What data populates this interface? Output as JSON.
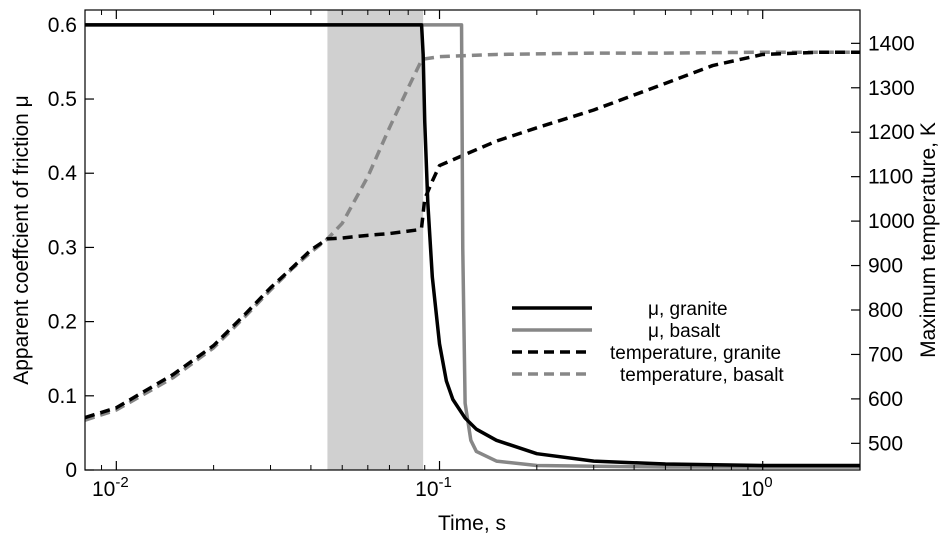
{
  "chart_data": {
    "type": "line",
    "xlabel": "Time, s",
    "ylabel_left": "Apparent coeffcient of friction μ",
    "ylabel_right": "Maximum temperature, K",
    "x_scale": "log",
    "xlim": [
      0.008,
      2.0
    ],
    "ylim_left": [
      0,
      0.62
    ],
    "ylim_right": [
      440,
      1475
    ],
    "x_ticks": [
      {
        "value": 0.01,
        "base": "10",
        "exp": "-2"
      },
      {
        "value": 0.1,
        "base": "10",
        "exp": "-1"
      },
      {
        "value": 1,
        "base": "10",
        "exp": "0"
      }
    ],
    "y_left_ticks": [
      "0",
      "0.1",
      "0.2",
      "0.3",
      "0.4",
      "0.5",
      "0.6"
    ],
    "y_right_ticks": [
      "500",
      "600",
      "700",
      "800",
      "900",
      "1000",
      "1100",
      "1200",
      "1300",
      "1400"
    ],
    "shaded_region": {
      "x_start": 0.045,
      "x_end": 0.089,
      "color": "#d0d0d0"
    },
    "grid": false,
    "legend_position": "center-right",
    "series": [
      {
        "name": "μ, granite",
        "axis": "left",
        "color": "#000000",
        "style": "solid",
        "points": [
          [
            0.008,
            0.6
          ],
          [
            0.088,
            0.6
          ],
          [
            0.089,
            0.56
          ],
          [
            0.09,
            0.47
          ],
          [
            0.092,
            0.36
          ],
          [
            0.095,
            0.26
          ],
          [
            0.1,
            0.17
          ],
          [
            0.105,
            0.12
          ],
          [
            0.11,
            0.095
          ],
          [
            0.12,
            0.07
          ],
          [
            0.13,
            0.055
          ],
          [
            0.15,
            0.04
          ],
          [
            0.2,
            0.022
          ],
          [
            0.3,
            0.012
          ],
          [
            0.5,
            0.008
          ],
          [
            1.0,
            0.006
          ],
          [
            2.0,
            0.006
          ]
        ]
      },
      {
        "name": "μ, basalt",
        "axis": "left",
        "color": "#878787",
        "style": "solid",
        "points": [
          [
            0.008,
            0.6
          ],
          [
            0.117,
            0.6
          ],
          [
            0.118,
            0.3
          ],
          [
            0.12,
            0.09
          ],
          [
            0.125,
            0.04
          ],
          [
            0.13,
            0.025
          ],
          [
            0.15,
            0.012
          ],
          [
            0.2,
            0.006
          ],
          [
            0.5,
            0.004
          ],
          [
            2.0,
            0.004
          ]
        ]
      },
      {
        "name": "temperature, granite",
        "axis": "right",
        "color": "#000000",
        "style": "dashed",
        "points": [
          [
            0.008,
            558
          ],
          [
            0.01,
            580
          ],
          [
            0.015,
            655
          ],
          [
            0.02,
            720
          ],
          [
            0.025,
            790
          ],
          [
            0.03,
            850
          ],
          [
            0.035,
            895
          ],
          [
            0.04,
            935
          ],
          [
            0.045,
            960
          ],
          [
            0.05,
            962
          ],
          [
            0.06,
            968
          ],
          [
            0.07,
            972
          ],
          [
            0.085,
            980
          ],
          [
            0.088,
            985
          ],
          [
            0.09,
            1050
          ],
          [
            0.095,
            1090
          ],
          [
            0.1,
            1125
          ],
          [
            0.12,
            1150
          ],
          [
            0.15,
            1180
          ],
          [
            0.2,
            1210
          ],
          [
            0.3,
            1250
          ],
          [
            0.5,
            1310
          ],
          [
            0.7,
            1350
          ],
          [
            1.0,
            1375
          ],
          [
            1.5,
            1380
          ],
          [
            2.0,
            1380
          ]
        ]
      },
      {
        "name": "temperature, basalt",
        "axis": "right",
        "color": "#878787",
        "style": "dashed",
        "points": [
          [
            0.008,
            552
          ],
          [
            0.01,
            575
          ],
          [
            0.015,
            648
          ],
          [
            0.02,
            715
          ],
          [
            0.025,
            785
          ],
          [
            0.03,
            845
          ],
          [
            0.035,
            893
          ],
          [
            0.04,
            930
          ],
          [
            0.045,
            960
          ],
          [
            0.05,
            995
          ],
          [
            0.06,
            1100
          ],
          [
            0.07,
            1210
          ],
          [
            0.08,
            1300
          ],
          [
            0.088,
            1362
          ],
          [
            0.09,
            1365
          ],
          [
            0.1,
            1370
          ],
          [
            0.15,
            1375
          ],
          [
            0.3,
            1378
          ],
          [
            0.5,
            1378
          ],
          [
            1.0,
            1380
          ],
          [
            2.0,
            1380
          ]
        ]
      }
    ]
  }
}
